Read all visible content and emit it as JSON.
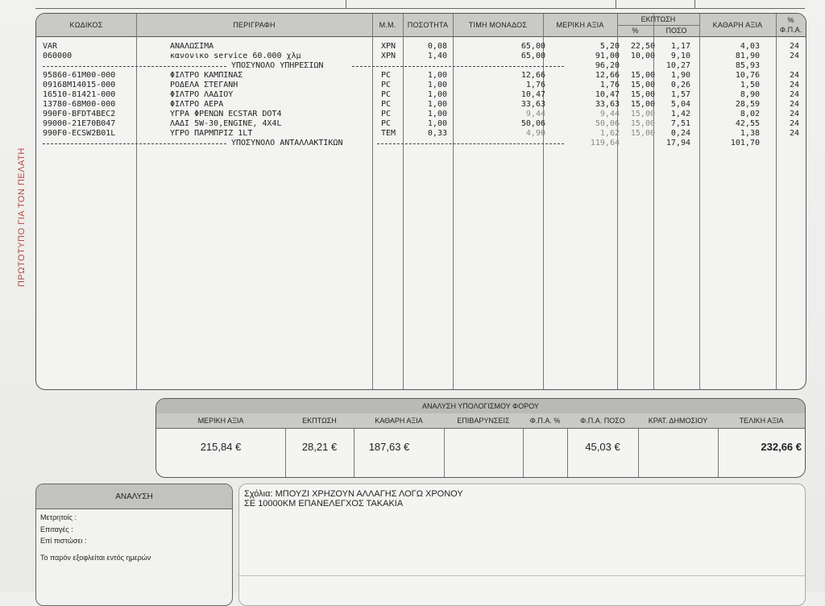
{
  "side_label": "ΠΡΩΤΟΤΥΠΟ ΓΙΑ ΤΟΝ ΠΕΛΑΤΗ",
  "headers": {
    "code": "ΚΩΔΙΚΟΣ",
    "description": "ΠΕΡΙΓΡΑΦΗ",
    "unit": "Μ.Μ.",
    "quantity": "ΠΟΣΟΤΗΤΑ",
    "unit_price": "ΤΙΜΗ ΜΟΝΑΔΟΣ",
    "partial_value": "ΜΕΡΙΚΗ ΑΞΙΑ",
    "discount": "ΕΚΠΤΩΣΗ",
    "discount_pct": "%",
    "discount_amount": "ΠΟΣΟ",
    "net_value": "ΚΑΘΑΡΗ ΑΞΙΑ",
    "vat_pct_top": "%",
    "vat_pct_bottom": "Φ.Π.Α."
  },
  "rows": [
    {
      "code": "VAR",
      "desc": "ΑΝΑΛΩΣΙΜΑ",
      "unit": "ΧΡΝ",
      "qty": "0,08",
      "price": "65,00",
      "partial": "5,20",
      "dpct": "22,50",
      "damt": "1,17",
      "net": "4,03",
      "vat": "24"
    },
    {
      "code": "060000",
      "desc": "κανονικο service 60.000 χλμ",
      "unit": "ΧΡΝ",
      "qty": "1,40",
      "price": "65,00",
      "partial": "91,00",
      "dpct": "10,00",
      "damt": "9,10",
      "net": "81,90",
      "vat": "24"
    },
    {
      "code": "95860-61M00-000",
      "desc": "ΦΙΛΤΡΟ ΚΑΜΠΙΝΑΣ",
      "unit": "PC",
      "qty": "1,00",
      "price": "12,66",
      "partial": "12,66",
      "dpct": "15,00",
      "damt": "1,90",
      "net": "10,76",
      "vat": "24"
    },
    {
      "code": "09168M14015-000",
      "desc": "ΡΟΔΕΛΑ ΣΤΕΓΑΝΗ",
      "unit": "PC",
      "qty": "1,00",
      "price": "1,76",
      "partial": "1,76",
      "dpct": "15,00",
      "damt": "0,26",
      "net": "1,50",
      "vat": "24"
    },
    {
      "code": "16510-81421-000",
      "desc": "ΦΙΛΤΡΟ ΛΑΔΙΟΥ",
      "unit": "PC",
      "qty": "1,00",
      "price": "10,47",
      "partial": "10,47",
      "dpct": "15,00",
      "damt": "1,57",
      "net": "8,90",
      "vat": "24"
    },
    {
      "code": "13780-68M00-000",
      "desc": "ΦΙΛΤΡΟ ΑΕΡΑ",
      "unit": "PC",
      "qty": "1,00",
      "price": "33,63",
      "partial": "33,63",
      "dpct": "15,00",
      "damt": "5,04",
      "net": "28,59",
      "vat": "24"
    },
    {
      "code": "990F0-BFDT4BEC2",
      "desc": "ΥΓΡΑ ΦΡΕΝΩΝ ECSTAR DOT4",
      "unit": "PC",
      "qty": "1,00",
      "price": "9,44",
      "partial": "9,44",
      "dpct": "15,00",
      "damt": "1,42",
      "net": "8,02",
      "vat": "24"
    },
    {
      "code": "99000-21E70B047",
      "desc": "ΛΑΔΙ 5W-30,ENGINE, 4X4L",
      "unit": "PC",
      "qty": "1,00",
      "price": "50,06",
      "partial": "50,06",
      "dpct": "15,00",
      "damt": "7,51",
      "net": "42,55",
      "vat": "24"
    },
    {
      "code": "990F0-ECSW2B01L",
      "desc": "ΥΓΡΟ ΠΑΡΜΠΡΙΖ 1LT",
      "unit": "TEM",
      "qty": "0,33",
      "price": "4,90",
      "partial": "1,62",
      "dpct": "15,00",
      "damt": "0,24",
      "net": "1,38",
      "vat": "24"
    }
  ],
  "subtotal_services": {
    "label": "ΥΠΟΣΥΝΟΛΟ ΥΠΗΡΕΣΙΩΝ",
    "partial": "96,20",
    "damt": "10,27",
    "net": "85,93"
  },
  "subtotal_parts": {
    "label": "ΥΠΟΣΥΝΟΛΟ ΑΝΤΑΛΛΑΚΤΙΚΩΝ",
    "partial": "119,64",
    "damt": "17,94",
    "net": "101,70"
  },
  "tax": {
    "title": "ΑΝΑΛΥΣΗ ΥΠΟΛΟΓΙΣΜΟΥ ΦΟΡΟΥ",
    "headers": [
      "ΜΕΡΙΚΗ ΑΞΙΑ",
      "ΕΚΠΤΩΣΗ",
      "ΚΑΘΑΡΗ ΑΞΙΑ",
      "ΕΠΙΒΑΡΥΝΣΕΙΣ",
      "Φ.Π.Α. %",
      "Φ.Π.Α. ΠΟΣΟ",
      "ΚΡΑΤ. ΔΗΜΟΣΙΟΥ",
      "ΤΕΛΙΚΗ ΑΞΙΑ"
    ],
    "values": [
      "215,84 €",
      "28,21 €",
      "187,63 €",
      "",
      "",
      "45,03 €",
      "",
      "232,66 €"
    ]
  },
  "analysis": {
    "title": "ΑΝΑΛΥΣΗ",
    "cash": "Μετρητοίς    :",
    "orders": "Επιταγές      :",
    "credit": "Επί πιστώσει :",
    "terms": "Το παρόν εξοφλείται εντός  ημερών"
  },
  "notes": {
    "line1": "Σχόλια: ΜΠΟΥΖΙ ΧΡΗΖΟΥΝ ΑΛΛΑΓΗΣ ΛΟΓΩ ΧΡΟΝΟΥ",
    "line2": "ΣΕ 10000ΚΜ ΕΠΑΝΕΛΕΓΧΟΣ ΤΑΚΑΚΙΑ"
  }
}
